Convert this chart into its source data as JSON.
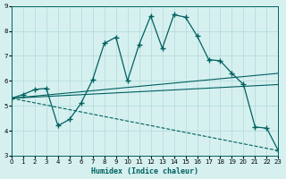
{
  "xlabel": "Humidex (Indice chaleur)",
  "ylabel": "",
  "bg_color": "#d6f0f0",
  "line_color": "#006060",
  "grid_color": "#b0d8d8",
  "xlim": [
    0,
    23
  ],
  "ylim": [
    3,
    9
  ],
  "xticks": [
    0,
    1,
    2,
    3,
    4,
    5,
    6,
    7,
    8,
    9,
    10,
    11,
    12,
    13,
    14,
    15,
    16,
    17,
    18,
    19,
    20,
    21,
    22,
    23
  ],
  "yticks": [
    3,
    4,
    5,
    6,
    7,
    8,
    9
  ],
  "series1_x": [
    0,
    1,
    2,
    3,
    4,
    5,
    6,
    7,
    8,
    9,
    10,
    11,
    12,
    13,
    14,
    15,
    16,
    17,
    18,
    19,
    20,
    21,
    22,
    23
  ],
  "series1_y": [
    5.3,
    5.45,
    5.65,
    5.7,
    4.2,
    4.45,
    5.1,
    6.05,
    7.5,
    7.75,
    6.0,
    7.45,
    8.6,
    7.3,
    8.65,
    8.55,
    7.8,
    6.85,
    6.8,
    6.3,
    5.85,
    4.15,
    4.1,
    3.2
  ],
  "series2_x": [
    0,
    23
  ],
  "series2_y": [
    5.3,
    3.2
  ],
  "series3_x": [
    0,
    23
  ],
  "series3_y": [
    5.3,
    5.85
  ],
  "series4_x": [
    0,
    23
  ],
  "series4_y": [
    5.3,
    6.3
  ]
}
